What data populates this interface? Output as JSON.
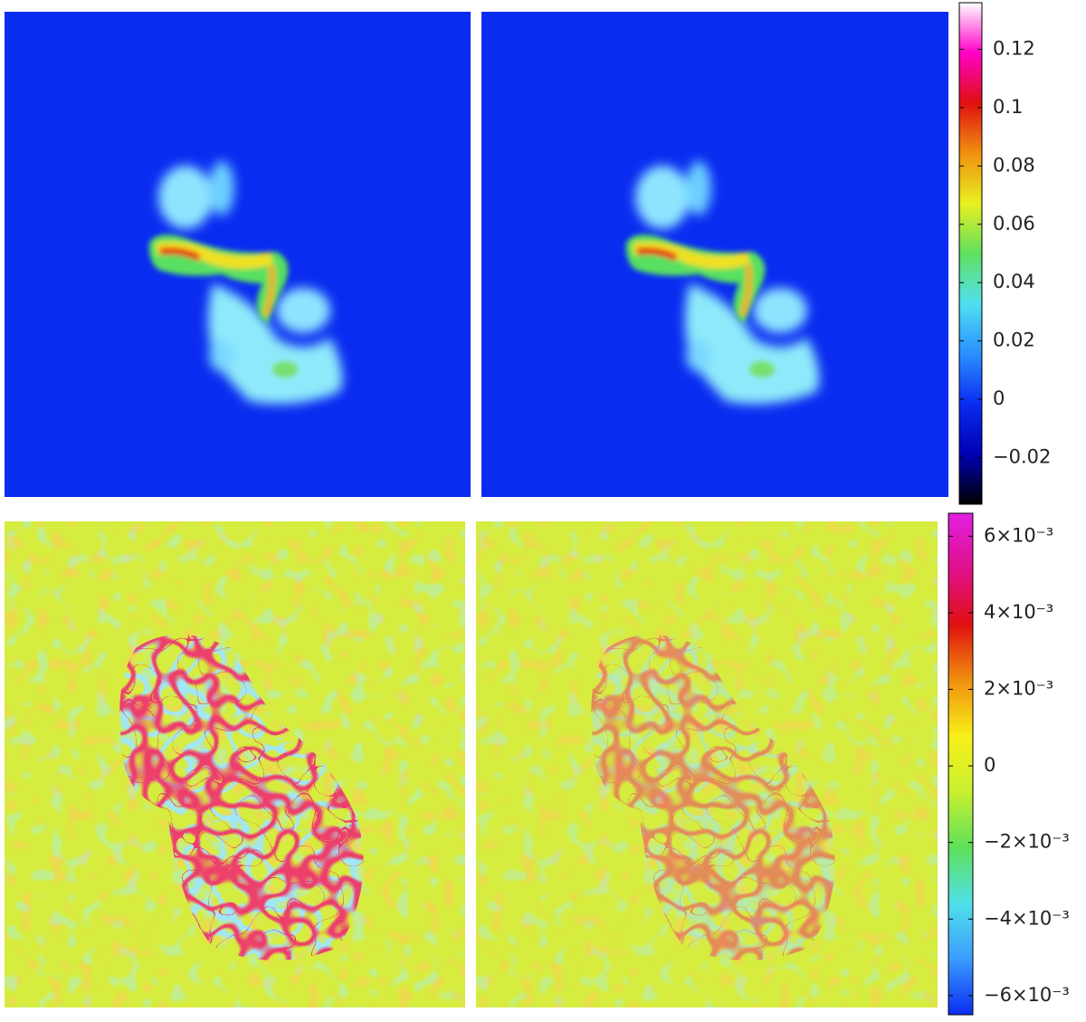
{
  "chart_data": [
    {
      "type": "colorbar",
      "ylim": [
        -0.036,
        0.136
      ],
      "yticks": [
        {
          "value": -0.02,
          "label": "−0.02"
        },
        0,
        0.02,
        0.04,
        0.06,
        0.08,
        0.1,
        0.12
      ],
      "colors": [
        "#000000",
        "#0000b4",
        "#0a2cf0",
        "#2a90ff",
        "#50e0f0",
        "#60e060",
        "#e8f020",
        "#f09010",
        "#e01010",
        "#ff00c8",
        "#ffffff"
      ]
    },
    {
      "type": "colorbar",
      "ylim": [
        -0.0065,
        0.0066
      ],
      "yticks": [
        {
          "value": -0.006,
          "label": "−6×10⁻³"
        },
        {
          "value": -0.004,
          "label": "−4×10⁻³"
        },
        {
          "value": -0.002,
          "label": "−2×10⁻³"
        },
        0,
        {
          "value": 0.002,
          "label": "2×10⁻³"
        },
        {
          "value": 0.004,
          "label": "4×10⁻³"
        },
        {
          "value": 0.006,
          "label": "6×10⁻³"
        }
      ],
      "colors": [
        "#0a2cf0",
        "#3c9cff",
        "#50e0e8",
        "#5ee05a",
        "#c8f030",
        "#f8f018",
        "#f09010",
        "#e01010",
        "#e0108c",
        "#e020e0"
      ]
    }
  ]
}
